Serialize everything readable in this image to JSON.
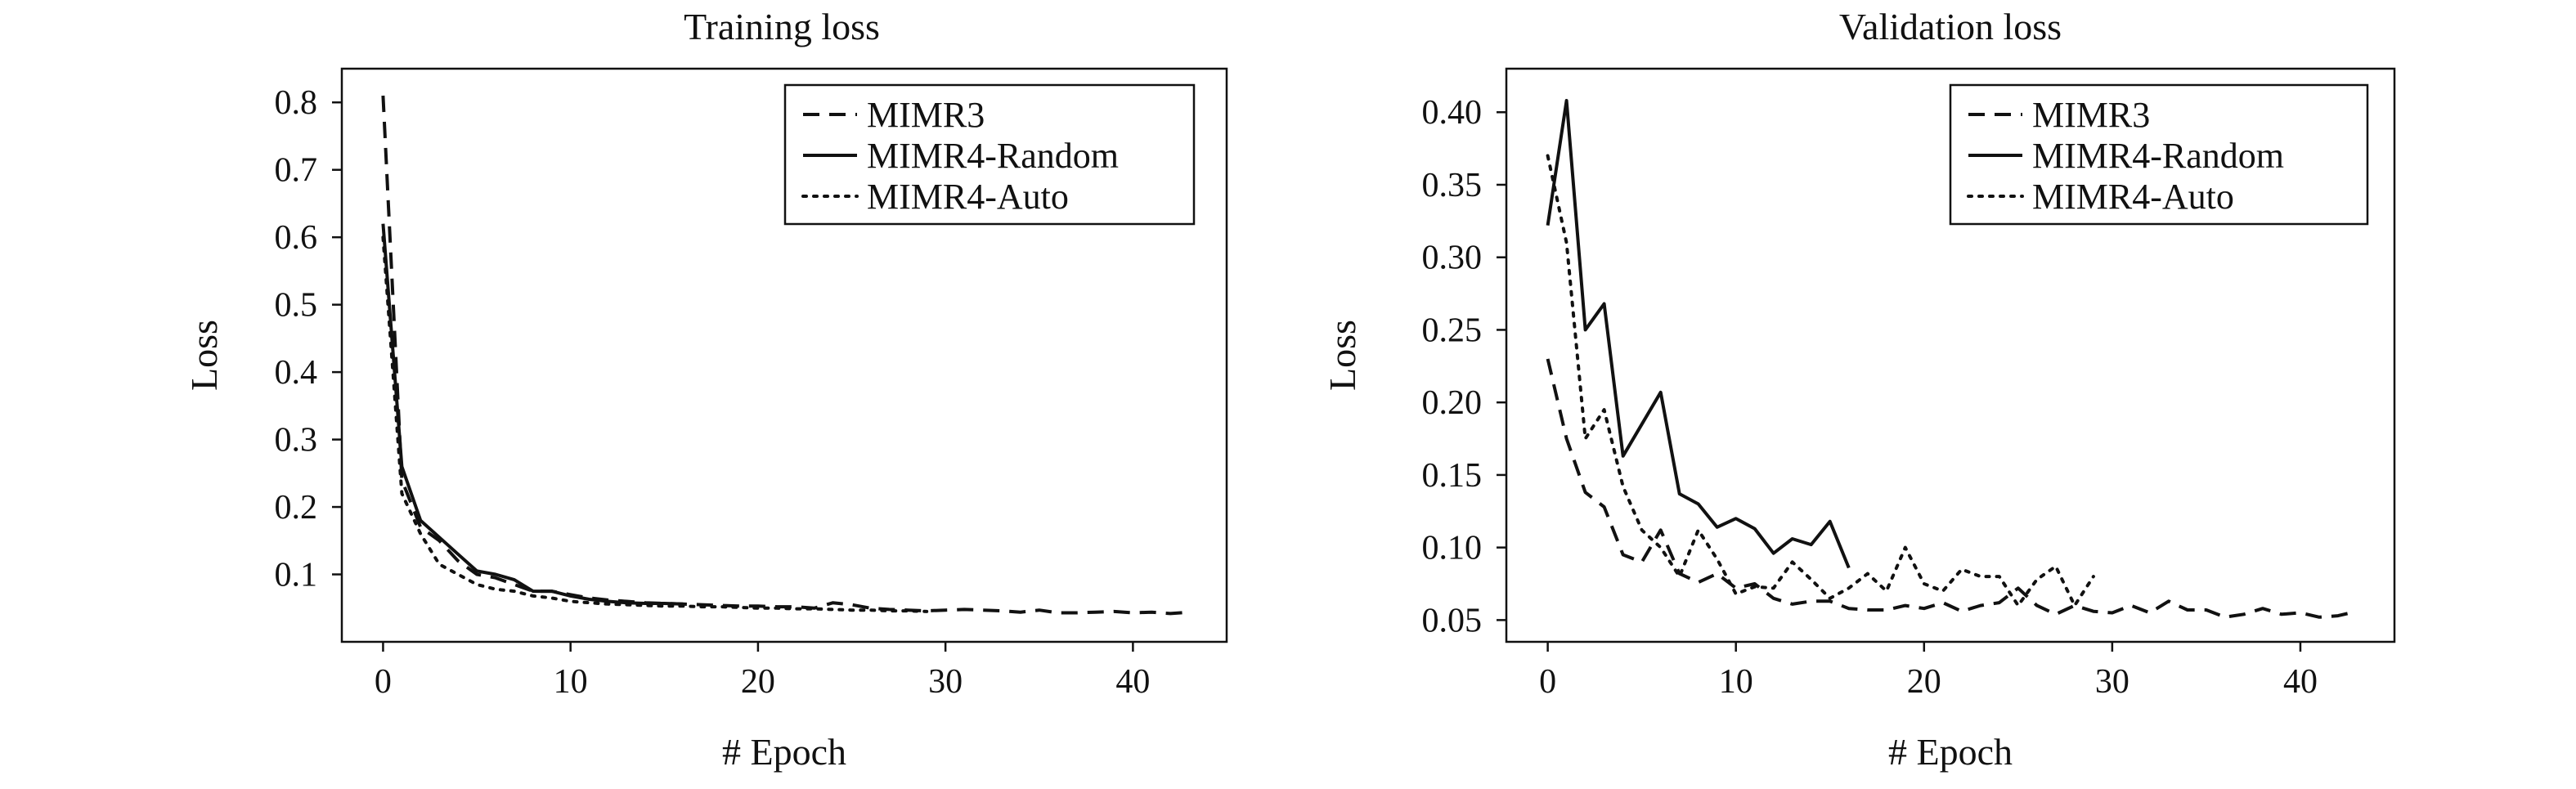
{
  "chart_data": [
    {
      "type": "line",
      "title": "Training loss",
      "xlabel": "# Epoch",
      "ylabel": "Loss",
      "xlim": [
        -2.2,
        45
      ],
      "ylim": [
        0.0,
        0.85
      ],
      "xticks": [
        0,
        10,
        20,
        30,
        40
      ],
      "yticks": [
        0.1,
        0.2,
        0.3,
        0.4,
        0.5,
        0.6,
        0.7,
        0.8
      ],
      "ytick_labels": [
        "0.1",
        "0.2",
        "0.3",
        "0.4",
        "0.5",
        "0.6",
        "0.7",
        "0.8"
      ],
      "grid": false,
      "legend_position": "top-right",
      "series": [
        {
          "name": "MIMR3",
          "style": "dashed",
          "x": [
            0,
            1,
            2,
            3,
            4,
            5,
            6,
            7,
            8,
            9,
            10,
            11,
            12,
            13,
            14,
            15,
            16,
            17,
            18,
            19,
            20,
            21,
            22,
            23,
            24,
            25,
            26,
            27,
            28,
            29,
            30,
            31,
            32,
            33,
            34,
            35,
            36,
            37,
            38,
            39,
            40,
            41,
            42,
            43
          ],
          "y": [
            0.81,
            0.24,
            0.17,
            0.15,
            0.12,
            0.1,
            0.095,
            0.085,
            0.075,
            0.075,
            0.07,
            0.065,
            0.062,
            0.06,
            0.058,
            0.057,
            0.056,
            0.055,
            0.054,
            0.053,
            0.053,
            0.052,
            0.052,
            0.05,
            0.058,
            0.055,
            0.05,
            0.048,
            0.047,
            0.046,
            0.047,
            0.048,
            0.047,
            0.046,
            0.044,
            0.047,
            0.043,
            0.043,
            0.044,
            0.045,
            0.043,
            0.044,
            0.042,
            0.044
          ]
        },
        {
          "name": "MIMR4-Random",
          "style": "solid",
          "x": [
            0,
            1,
            2,
            3,
            4,
            5,
            6,
            7,
            8,
            9,
            10,
            11,
            12,
            13,
            14,
            15,
            16
          ],
          "y": [
            0.62,
            0.26,
            0.18,
            0.155,
            0.13,
            0.105,
            0.1,
            0.092,
            0.075,
            0.075,
            0.068,
            0.063,
            0.06,
            0.058,
            0.057,
            0.057,
            0.056
          ]
        },
        {
          "name": "MIMR4-Auto",
          "style": "dotted",
          "x": [
            0,
            1,
            2,
            3,
            4,
            5,
            6,
            7,
            8,
            9,
            10,
            11,
            12,
            13,
            14,
            15,
            16,
            17,
            18,
            19,
            20,
            21,
            22,
            23,
            24,
            25,
            26,
            27,
            28,
            29
          ],
          "y": [
            0.6,
            0.22,
            0.16,
            0.115,
            0.1,
            0.085,
            0.078,
            0.075,
            0.068,
            0.065,
            0.06,
            0.058,
            0.056,
            0.055,
            0.054,
            0.053,
            0.053,
            0.052,
            0.052,
            0.051,
            0.05,
            0.05,
            0.049,
            0.049,
            0.048,
            0.047,
            0.047,
            0.046,
            0.046,
            0.045
          ]
        }
      ]
    },
    {
      "type": "line",
      "title": "Validation loss",
      "xlabel": "# Epoch",
      "ylabel": "Loss",
      "xlim": [
        -2.2,
        45
      ],
      "ylim": [
        0.035,
        0.43
      ],
      "xticks": [
        0,
        10,
        20,
        30,
        40
      ],
      "yticks": [
        0.05,
        0.1,
        0.15,
        0.2,
        0.25,
        0.3,
        0.35,
        0.4
      ],
      "ytick_labels": [
        "0.05",
        "0.10",
        "0.15",
        "0.20",
        "0.25",
        "0.30",
        "0.35",
        "0.40"
      ],
      "grid": false,
      "legend_position": "top-right",
      "series": [
        {
          "name": "MIMR3",
          "style": "dashed",
          "x": [
            0,
            1,
            2,
            3,
            4,
            5,
            6,
            7,
            8,
            9,
            10,
            11,
            12,
            13,
            14,
            15,
            16,
            17,
            18,
            19,
            20,
            21,
            22,
            23,
            24,
            25,
            26,
            27,
            28,
            29,
            30,
            31,
            32,
            33,
            34,
            35,
            36,
            37,
            38,
            39,
            40,
            41,
            42,
            43
          ],
          "y": [
            0.23,
            0.175,
            0.138,
            0.128,
            0.095,
            0.09,
            0.112,
            0.082,
            0.076,
            0.082,
            0.072,
            0.075,
            0.065,
            0.061,
            0.063,
            0.063,
            0.058,
            0.057,
            0.057,
            0.06,
            0.058,
            0.062,
            0.056,
            0.06,
            0.062,
            0.072,
            0.06,
            0.054,
            0.06,
            0.056,
            0.055,
            0.06,
            0.055,
            0.063,
            0.057,
            0.057,
            0.052,
            0.054,
            0.058,
            0.054,
            0.055,
            0.052,
            0.053,
            0.056
          ]
        },
        {
          "name": "MIMR4-Random",
          "style": "solid",
          "x": [
            0,
            1,
            2,
            3,
            4,
            5,
            6,
            7,
            8,
            9,
            10,
            11,
            12,
            13,
            14,
            15,
            16
          ],
          "y": [
            0.322,
            0.408,
            0.25,
            0.268,
            0.163,
            0.185,
            0.207,
            0.137,
            0.13,
            0.114,
            0.12,
            0.113,
            0.096,
            0.106,
            0.102,
            0.118,
            0.086
          ]
        },
        {
          "name": "MIMR4-Auto",
          "style": "dotted",
          "x": [
            0,
            1,
            2,
            3,
            4,
            5,
            6,
            7,
            8,
            9,
            10,
            11,
            12,
            13,
            14,
            15,
            16,
            17,
            18,
            19,
            20,
            21,
            22,
            23,
            24,
            25,
            26,
            27,
            28,
            29
          ],
          "y": [
            0.37,
            0.31,
            0.175,
            0.195,
            0.142,
            0.112,
            0.1,
            0.08,
            0.112,
            0.092,
            0.068,
            0.073,
            0.072,
            0.09,
            0.078,
            0.065,
            0.072,
            0.082,
            0.07,
            0.1,
            0.075,
            0.07,
            0.085,
            0.08,
            0.08,
            0.06,
            0.078,
            0.087,
            0.06,
            0.08
          ]
        }
      ]
    }
  ]
}
